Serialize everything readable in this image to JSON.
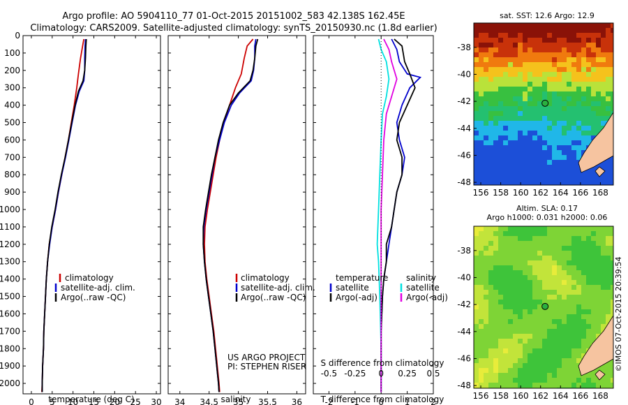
{
  "header": {
    "line1": "Argo profile: AO 5904110_77 01-Oct-2015 20151002_583 42.138S 162.45E",
    "line2": "Climatology: CARS2009. Satellite-adjusted climatology: synTS_20150930.nc (1.8d earlier)"
  },
  "colors": {
    "climatology": "#cc0000",
    "satellite": "#0000cc",
    "argo": "#000000",
    "cyan": "#00e0e0",
    "magenta": "#e000e0"
  },
  "chart_data": [
    {
      "type": "line",
      "name": "temperature-panel",
      "xlabel": "temperature (deg C)",
      "ylabel": "",
      "xlim": [
        -2,
        31
      ],
      "ylim": [
        2060,
        0
      ],
      "xticks": [
        0,
        5,
        10,
        15,
        20,
        25,
        30
      ],
      "yticks": [
        0,
        100,
        200,
        300,
        400,
        500,
        600,
        700,
        800,
        900,
        1000,
        1100,
        1200,
        1300,
        1400,
        1500,
        1600,
        1700,
        1800,
        1900,
        2000
      ],
      "legend": [
        "climatology",
        "satellite-adj. clim.",
        "Argo(..raw -QC)"
      ],
      "series": [
        {
          "name": "climatology",
          "color": "#cc0000",
          "points": [
            [
              12.6,
              20
            ],
            [
              12.3,
              60
            ],
            [
              11.8,
              130
            ],
            [
              11.3,
              220
            ],
            [
              10.9,
              300
            ],
            [
              10.3,
              400
            ],
            [
              9.6,
              500
            ],
            [
              8.9,
              600
            ],
            [
              8.1,
              700
            ],
            [
              7.3,
              800
            ],
            [
              6.5,
              900
            ],
            [
              5.8,
              1000
            ],
            [
              5.0,
              1100
            ],
            [
              4.3,
              1200
            ],
            [
              3.9,
              1300
            ],
            [
              3.6,
              1400
            ],
            [
              3.4,
              1500
            ],
            [
              3.2,
              1600
            ],
            [
              3.0,
              1700
            ],
            [
              2.9,
              1800
            ],
            [
              2.7,
              1900
            ],
            [
              2.6,
              2000
            ],
            [
              2.5,
              2050
            ]
          ]
        },
        {
          "name": "satellite-adj. clim.",
          "color": "#0000cc",
          "points": [
            [
              13.0,
              20
            ],
            [
              12.9,
              60
            ],
            [
              12.8,
              130
            ],
            [
              12.8,
              200
            ],
            [
              12.6,
              260
            ],
            [
              11.5,
              320
            ],
            [
              10.6,
              400
            ],
            [
              9.8,
              500
            ],
            [
              9.0,
              600
            ],
            [
              8.2,
              700
            ],
            [
              7.3,
              800
            ],
            [
              6.5,
              900
            ],
            [
              5.8,
              1000
            ],
            [
              5.0,
              1100
            ],
            [
              4.4,
              1200
            ],
            [
              3.9,
              1300
            ],
            [
              3.6,
              1400
            ],
            [
              3.4,
              1500
            ],
            [
              3.2,
              1600
            ],
            [
              3.0,
              1700
            ],
            [
              2.9,
              1800
            ],
            [
              2.7,
              1900
            ],
            [
              2.6,
              2000
            ],
            [
              2.6,
              2050
            ]
          ]
        },
        {
          "name": "Argo(..raw -QC)",
          "color": "#000000",
          "points": [
            [
              13.2,
              20
            ],
            [
              13.1,
              60
            ],
            [
              13.0,
              130
            ],
            [
              12.8,
              200
            ],
            [
              12.4,
              260
            ],
            [
              11.3,
              320
            ],
            [
              10.5,
              400
            ],
            [
              9.7,
              500
            ],
            [
              8.9,
              600
            ],
            [
              8.1,
              700
            ],
            [
              7.2,
              800
            ],
            [
              6.4,
              900
            ],
            [
              5.7,
              1000
            ],
            [
              4.9,
              1100
            ],
            [
              4.3,
              1200
            ],
            [
              3.9,
              1300
            ],
            [
              3.6,
              1400
            ],
            [
              3.4,
              1500
            ],
            [
              3.2,
              1600
            ],
            [
              3.0,
              1700
            ],
            [
              2.9,
              1800
            ],
            [
              2.7,
              1900
            ],
            [
              2.6,
              2000
            ],
            [
              2.6,
              2050
            ]
          ]
        }
      ]
    },
    {
      "type": "line",
      "name": "salinity-panel",
      "xlabel": "salinity",
      "xlim": [
        33.8,
        36.15
      ],
      "ylim": [
        2060,
        0
      ],
      "xticks": [
        34,
        34.5,
        35,
        35.5,
        36
      ],
      "legend": [
        "climatology",
        "satellite-adj. clim.",
        "Argo(..raw -QC)"
      ],
      "annotation": [
        "US ARGO PROJECT",
        "PI: STEPHEN RISER"
      ],
      "series": [
        {
          "name": "climatology",
          "color": "#cc0000",
          "points": [
            [
              35.25,
              20
            ],
            [
              35.15,
              60
            ],
            [
              35.1,
              130
            ],
            [
              35.05,
              220
            ],
            [
              34.95,
              300
            ],
            [
              34.85,
              400
            ],
            [
              34.75,
              500
            ],
            [
              34.68,
              600
            ],
            [
              34.62,
              700
            ],
            [
              34.57,
              800
            ],
            [
              34.52,
              900
            ],
            [
              34.47,
              1000
            ],
            [
              34.43,
              1100
            ],
            [
              34.42,
              1200
            ],
            [
              34.43,
              1300
            ],
            [
              34.46,
              1400
            ],
            [
              34.5,
              1500
            ],
            [
              34.54,
              1600
            ],
            [
              34.58,
              1700
            ],
            [
              34.61,
              1800
            ],
            [
              34.64,
              1900
            ],
            [
              34.67,
              2000
            ],
            [
              34.68,
              2050
            ]
          ]
        },
        {
          "name": "satellite-adj. clim.",
          "color": "#0000cc",
          "points": [
            [
              35.3,
              20
            ],
            [
              35.28,
              60
            ],
            [
              35.28,
              130
            ],
            [
              35.26,
              200
            ],
            [
              35.22,
              260
            ],
            [
              35.02,
              330
            ],
            [
              34.88,
              400
            ],
            [
              34.76,
              500
            ],
            [
              34.68,
              600
            ],
            [
              34.6,
              700
            ],
            [
              34.55,
              800
            ],
            [
              34.5,
              900
            ],
            [
              34.45,
              1000
            ],
            [
              34.41,
              1100
            ],
            [
              34.4,
              1200
            ],
            [
              34.42,
              1300
            ],
            [
              34.45,
              1400
            ],
            [
              34.49,
              1500
            ],
            [
              34.53,
              1600
            ],
            [
              34.57,
              1700
            ],
            [
              34.6,
              1800
            ],
            [
              34.63,
              1900
            ],
            [
              34.66,
              2000
            ],
            [
              34.67,
              2050
            ]
          ]
        },
        {
          "name": "Argo(..raw -QC)",
          "color": "#000000",
          "points": [
            [
              35.33,
              20
            ],
            [
              35.3,
              60
            ],
            [
              35.28,
              130
            ],
            [
              35.25,
              200
            ],
            [
              35.2,
              260
            ],
            [
              35.0,
              330
            ],
            [
              34.85,
              400
            ],
            [
              34.74,
              500
            ],
            [
              34.66,
              600
            ],
            [
              34.6,
              700
            ],
            [
              34.54,
              800
            ],
            [
              34.49,
              900
            ],
            [
              34.44,
              1000
            ],
            [
              34.4,
              1100
            ],
            [
              34.4,
              1200
            ],
            [
              34.42,
              1300
            ],
            [
              34.45,
              1400
            ],
            [
              34.49,
              1500
            ],
            [
              34.53,
              1600
            ],
            [
              34.57,
              1700
            ],
            [
              34.6,
              1800
            ],
            [
              34.63,
              1900
            ],
            [
              34.66,
              2000
            ],
            [
              34.67,
              2050
            ]
          ]
        }
      ]
    },
    {
      "type": "line",
      "name": "difference-panel",
      "xlabel": "T difference from climatology",
      "xlabel_top": "S difference from climatology",
      "xlim": [
        -2.6,
        2.0
      ],
      "ylim": [
        2060,
        0
      ],
      "xticks": [
        -2,
        -1,
        0,
        1,
        2
      ],
      "xticklabels": [
        "-2",
        "-1",
        "0",
        "1",
        "2"
      ],
      "sticks": [
        -0.5,
        -0.25,
        0,
        0.25,
        0.5
      ],
      "sticklabels": [
        "-0.5",
        "-0.25",
        "0",
        "0.25",
        "0.5"
      ],
      "legend_groups": [
        {
          "title": "temperature",
          "entries": [
            "satellite",
            "Argo(-adj)"
          ]
        },
        {
          "title": "salinity",
          "entries": [
            "satellite",
            "Argo(-adj)"
          ]
        }
      ],
      "series": [
        {
          "name": "temperature satellite",
          "color": "#0000cc",
          "points": [
            [
              0.4,
              20
            ],
            [
              0.6,
              80
            ],
            [
              0.7,
              150
            ],
            [
              1.0,
              220
            ],
            [
              1.5,
              240
            ],
            [
              1.1,
              300
            ],
            [
              0.8,
              400
            ],
            [
              0.6,
              500
            ],
            [
              0.7,
              600
            ],
            [
              0.9,
              700
            ],
            [
              0.8,
              800
            ],
            [
              0.6,
              900
            ],
            [
              0.5,
              1000
            ],
            [
              0.4,
              1100
            ],
            [
              0.3,
              1200
            ],
            [
              0.2,
              1300
            ],
            [
              0.1,
              1400
            ],
            [
              0.05,
              1500
            ],
            [
              0.0,
              1700
            ],
            [
              0.0,
              2050
            ]
          ]
        },
        {
          "name": "temperature Argo(-adj)",
          "color": "#000000",
          "points": [
            [
              0.5,
              20
            ],
            [
              0.8,
              60
            ],
            [
              0.9,
              150
            ],
            [
              1.1,
              220
            ],
            [
              1.3,
              300
            ],
            [
              1.0,
              400
            ],
            [
              0.7,
              500
            ],
            [
              0.6,
              600
            ],
            [
              0.8,
              700
            ],
            [
              0.8,
              800
            ],
            [
              0.6,
              900
            ],
            [
              0.5,
              1000
            ],
            [
              0.4,
              1100
            ],
            [
              0.2,
              1200
            ],
            [
              0.2,
              1300
            ],
            [
              0.1,
              1400
            ],
            [
              0.05,
              1500
            ],
            [
              0.0,
              1700
            ],
            [
              0.0,
              2050
            ]
          ]
        },
        {
          "name": "salinity satellite",
          "color": "#00e0e0",
          "points": [
            [
              -0.1,
              20
            ],
            [
              0.0,
              80
            ],
            [
              0.2,
              150
            ],
            [
              0.3,
              250
            ],
            [
              0.2,
              350
            ],
            [
              0.05,
              450
            ],
            [
              0.0,
              600
            ],
            [
              -0.05,
              800
            ],
            [
              -0.1,
              1000
            ],
            [
              -0.15,
              1200
            ],
            [
              -0.1,
              1300
            ],
            [
              -0.05,
              1500
            ],
            [
              0.0,
              1800
            ],
            [
              0.0,
              2050
            ]
          ]
        },
        {
          "name": "salinity Argo(-adj)",
          "color": "#e000e0",
          "points": [
            [
              0.1,
              20
            ],
            [
              0.3,
              80
            ],
            [
              0.4,
              150
            ],
            [
              0.6,
              250
            ],
            [
              0.4,
              350
            ],
            [
              0.2,
              450
            ],
            [
              0.1,
              600
            ],
            [
              0.05,
              800
            ],
            [
              0.0,
              1000
            ],
            [
              0.0,
              1500
            ],
            [
              0.0,
              2050
            ]
          ]
        }
      ]
    },
    {
      "type": "heatmap",
      "name": "sst-map",
      "title": "sat. SST: 12.6 Argo: 12.9",
      "xticks": [
        156,
        158,
        160,
        162,
        164,
        166,
        168
      ],
      "yticks": [
        -38,
        -40,
        -42,
        -44,
        -46,
        -48
      ],
      "xlim": [
        155.3,
        169.3
      ],
      "ylim": [
        -48.2,
        -36.2
      ],
      "point": [
        162.45,
        -42.14
      ]
    },
    {
      "type": "heatmap",
      "name": "sla-map",
      "title1": "Altim. SLA: 0.17",
      "title2": "Argo h1000: 0.031 h2000: 0.06",
      "xticks": [
        156,
        158,
        160,
        162,
        164,
        166,
        168
      ],
      "yticks": [
        -38,
        -40,
        -42,
        -44,
        -46,
        -48
      ],
      "xlim": [
        155.3,
        169.3
      ],
      "ylim": [
        -48.2,
        -36.2
      ],
      "point": [
        162.45,
        -42.14
      ]
    }
  ],
  "side_label": "©IMOS 07-Oct-2015 20:39:54"
}
